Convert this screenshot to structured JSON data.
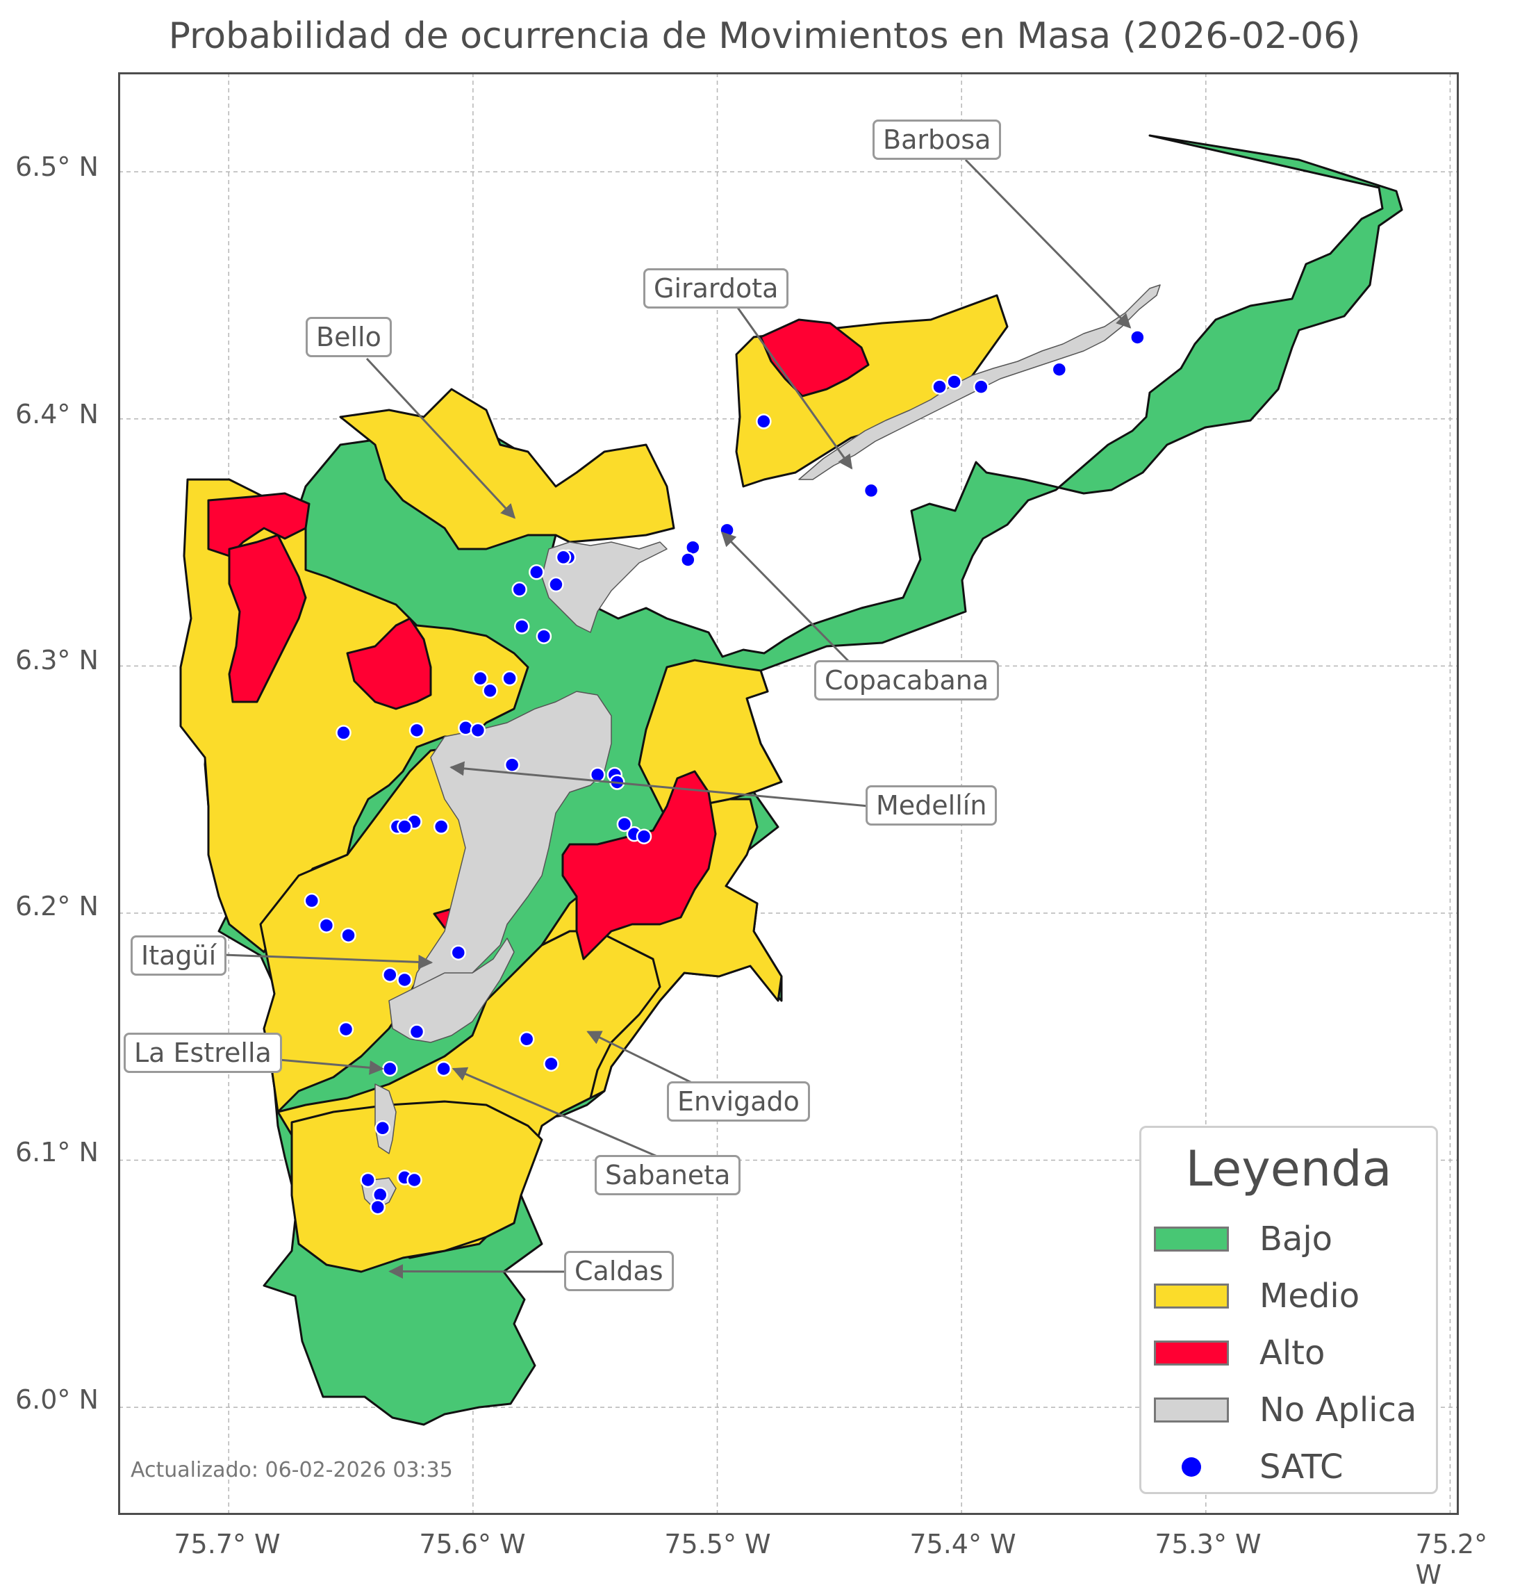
{
  "title": "Probabilidad de ocurrencia de Movimientos en Masa (2026-02-06)",
  "updated": "Actualizado: 06-02-2026 03:35",
  "axes": {
    "y_ticks": [
      "6.5° N",
      "6.4° N",
      "6.3° N",
      "6.2° N",
      "6.1° N",
      "6.0° N"
    ],
    "x_ticks": [
      "75.7° W",
      "75.6° W",
      "75.5° W",
      "75.4° W",
      "75.3° W",
      "75.2° W"
    ],
    "grid": true,
    "lon_range": [
      -75.745,
      -75.197
    ],
    "lat_range": [
      5.957,
      6.54
    ]
  },
  "colors": {
    "bajo": "#48c774",
    "medio": "#fbdc2a",
    "alto": "#ff0033",
    "no_aplica": "#d3d3d3",
    "satc": "#0000ff"
  },
  "municipalities": [
    {
      "name": "Barbosa",
      "lon": -75.331,
      "lat": 6.437
    },
    {
      "name": "Girardota",
      "lon": -75.445,
      "lat": 6.38
    },
    {
      "name": "Bello",
      "lon": -75.583,
      "lat": 6.36
    },
    {
      "name": "Copacabana",
      "lon": -75.498,
      "lat": 6.354
    },
    {
      "name": "Medellín",
      "lon": -75.609,
      "lat": 6.259
    },
    {
      "name": "Itagüí",
      "lon": -75.617,
      "lat": 6.18
    },
    {
      "name": "La Estrella",
      "lon": -75.637,
      "lat": 6.137
    },
    {
      "name": "Sabaneta",
      "lon": -75.608,
      "lat": 6.137
    },
    {
      "name": "Envigado",
      "lon": -75.553,
      "lat": 6.152
    },
    {
      "name": "Caldas",
      "lon": -75.634,
      "lat": 6.055
    }
  ],
  "legend": {
    "title": "Leyenda",
    "items": [
      {
        "label": "Bajo",
        "key": "bajo"
      },
      {
        "label": "Medio",
        "key": "medio"
      },
      {
        "label": "Alto",
        "key": "alto"
      },
      {
        "label": "No Aplica",
        "key": "no_aplica"
      },
      {
        "label": "SATC",
        "key": "satc"
      }
    ]
  },
  "satc_stations": [
    [
      -75.328,
      6.433
    ],
    [
      -75.36,
      6.42
    ],
    [
      -75.392,
      6.413
    ],
    [
      -75.403,
      6.415
    ],
    [
      -75.409,
      6.413
    ],
    [
      -75.481,
      6.399
    ],
    [
      -75.437,
      6.371
    ],
    [
      -75.496,
      6.355
    ],
    [
      -75.51,
      6.348
    ],
    [
      -75.512,
      6.343
    ],
    [
      -75.561,
      6.344
    ],
    [
      -75.563,
      6.344
    ],
    [
      -75.566,
      6.333
    ],
    [
      -75.574,
      6.338
    ],
    [
      -75.581,
      6.331
    ],
    [
      -75.58,
      6.316
    ],
    [
      -75.571,
      6.312
    ],
    [
      -75.585,
      6.295
    ],
    [
      -75.597,
      6.295
    ],
    [
      -75.593,
      6.29
    ],
    [
      -75.653,
      6.273
    ],
    [
      -75.623,
      6.274
    ],
    [
      -75.603,
      6.275
    ],
    [
      -75.598,
      6.274
    ],
    [
      -75.584,
      6.26
    ],
    [
      -75.549,
      6.256
    ],
    [
      -75.542,
      6.256
    ],
    [
      -75.541,
      6.253
    ],
    [
      -75.538,
      6.236
    ],
    [
      -75.534,
      6.232
    ],
    [
      -75.53,
      6.231
    ],
    [
      -75.624,
      6.237
    ],
    [
      -75.631,
      6.235
    ],
    [
      -75.628,
      6.235
    ],
    [
      -75.613,
      6.235
    ],
    [
      -75.666,
      6.205
    ],
    [
      -75.66,
      6.195
    ],
    [
      -75.651,
      6.191
    ],
    [
      -75.606,
      6.184
    ],
    [
      -75.634,
      6.175
    ],
    [
      -75.628,
      6.173
    ],
    [
      -75.652,
      6.153
    ],
    [
      -75.623,
      6.152
    ],
    [
      -75.578,
      6.149
    ],
    [
      -75.568,
      6.139
    ],
    [
      -75.634,
      6.137
    ],
    [
      -75.612,
      6.137
    ],
    [
      -75.637,
      6.113
    ],
    [
      -75.643,
      6.092
    ],
    [
      -75.638,
      6.086
    ],
    [
      -75.628,
      6.093
    ],
    [
      -75.624,
      6.092
    ],
    [
      -75.639,
      6.081
    ]
  ]
}
